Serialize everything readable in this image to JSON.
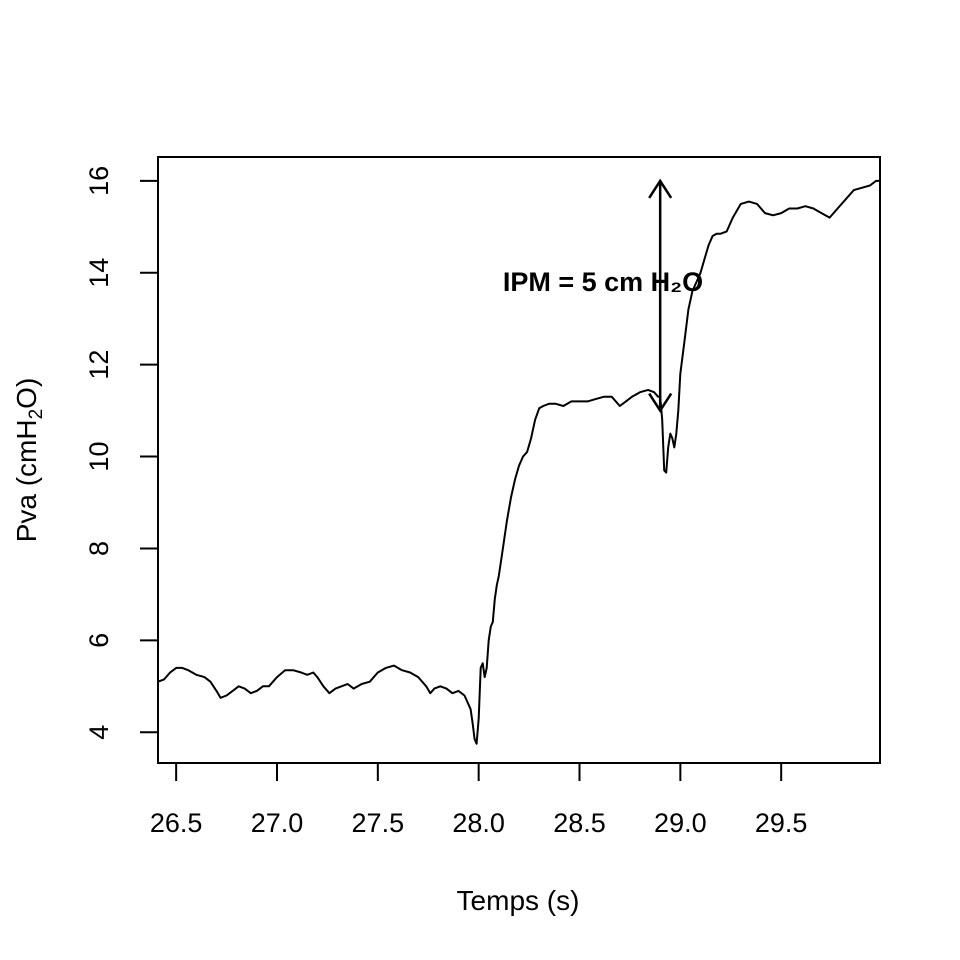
{
  "chart_data": {
    "type": "line",
    "title": "",
    "xlabel": "Temps (s)",
    "ylabel": {
      "prefix": "Pva (cmH",
      "sub": "2",
      "suffix": "O)"
    },
    "xlim": [
      26.41,
      29.99
    ],
    "ylim": [
      3.33,
      16.52
    ],
    "x_ticks": [
      26.5,
      27.0,
      27.5,
      28.0,
      28.5,
      29.0,
      29.5
    ],
    "x_tick_labels": [
      "26.5",
      "27.0",
      "27.5",
      "28.0",
      "28.5",
      "29.0",
      "29.5"
    ],
    "y_ticks": [
      4,
      6,
      8,
      10,
      12,
      14,
      16
    ],
    "y_tick_labels": [
      "4",
      "6",
      "8",
      "10",
      "12",
      "14",
      "16"
    ],
    "grid": false,
    "series": [
      {
        "x": [
          26.41,
          26.44,
          26.47,
          26.5,
          26.53,
          26.56,
          26.6,
          26.64,
          26.67,
          26.7,
          26.72,
          26.75,
          26.78,
          26.81,
          26.84,
          26.87,
          26.9,
          26.93,
          26.96,
          27.0,
          27.04,
          27.08,
          27.12,
          27.15,
          27.18,
          27.2,
          27.23,
          27.26,
          27.29,
          27.32,
          27.35,
          27.38,
          27.42,
          27.46,
          27.5,
          27.54,
          27.58,
          27.62,
          27.66,
          27.7,
          27.74,
          27.76,
          27.78,
          27.81,
          27.84,
          27.87,
          27.9,
          27.93,
          27.96,
          27.97,
          27.98,
          27.99,
          28.0,
          28.01,
          28.02,
          28.03,
          28.04,
          28.05,
          28.06,
          28.07,
          28.08,
          28.09,
          28.1,
          28.12,
          28.14,
          28.16,
          28.18,
          28.2,
          28.22,
          28.24,
          28.26,
          28.28,
          28.3,
          28.32,
          28.35,
          28.38,
          28.42,
          28.46,
          28.5,
          28.54,
          28.58,
          28.62,
          28.66,
          28.7,
          28.73,
          28.76,
          28.8,
          28.84,
          28.87,
          28.89,
          28.9,
          28.91,
          28.92,
          28.93,
          28.94,
          28.95,
          28.96,
          28.97,
          28.98,
          28.99,
          29.0,
          29.02,
          29.04,
          29.06,
          29.08,
          29.1,
          29.12,
          29.14,
          29.16,
          29.18,
          29.2,
          29.23,
          29.26,
          29.3,
          29.34,
          29.38,
          29.42,
          29.46,
          29.5,
          29.54,
          29.58,
          29.62,
          29.66,
          29.7,
          29.74,
          29.78,
          29.82,
          29.86,
          29.9,
          29.94,
          29.97,
          29.99
        ],
        "values": [
          5.1,
          5.15,
          5.3,
          5.4,
          5.4,
          5.35,
          5.25,
          5.2,
          5.1,
          4.9,
          4.75,
          4.8,
          4.9,
          5.0,
          4.95,
          4.85,
          4.9,
          5.0,
          5.0,
          5.2,
          5.35,
          5.35,
          5.3,
          5.25,
          5.3,
          5.2,
          5.0,
          4.85,
          4.95,
          5.0,
          5.05,
          4.95,
          5.05,
          5.1,
          5.3,
          5.4,
          5.45,
          5.35,
          5.3,
          5.2,
          5.0,
          4.85,
          4.95,
          5.0,
          4.95,
          4.85,
          4.9,
          4.8,
          4.5,
          4.2,
          3.85,
          3.75,
          4.3,
          5.4,
          5.5,
          5.2,
          5.4,
          6.0,
          6.3,
          6.4,
          6.9,
          7.2,
          7.4,
          8.0,
          8.6,
          9.1,
          9.5,
          9.8,
          10.0,
          10.1,
          10.4,
          10.8,
          11.05,
          11.1,
          11.15,
          11.15,
          11.1,
          11.2,
          11.2,
          11.2,
          11.25,
          11.3,
          11.3,
          11.1,
          11.2,
          11.3,
          11.4,
          11.45,
          11.4,
          11.3,
          11.3,
          10.8,
          9.7,
          9.65,
          10.2,
          10.5,
          10.4,
          10.2,
          10.5,
          11.0,
          11.8,
          12.5,
          13.2,
          13.6,
          13.8,
          14.0,
          14.3,
          14.6,
          14.8,
          14.85,
          14.85,
          14.9,
          15.2,
          15.5,
          15.55,
          15.5,
          15.3,
          15.25,
          15.3,
          15.4,
          15.4,
          15.45,
          15.4,
          15.3,
          15.2,
          15.4,
          15.6,
          15.8,
          15.85,
          15.9,
          16.0,
          16.0
        ]
      }
    ],
    "annotations": [
      {
        "text": "IPM =  5 cm H₂O",
        "x": 28.12,
        "y": 13.6
      },
      {
        "type": "double-arrow",
        "x": 28.9,
        "y_from": 11.0,
        "y_to": 16.0
      }
    ]
  }
}
